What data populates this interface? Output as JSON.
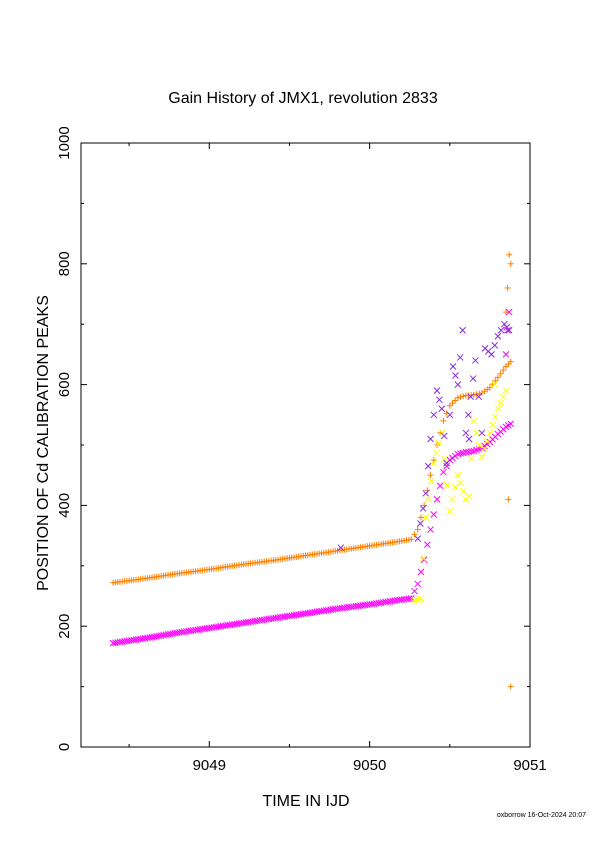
{
  "chart_data": {
    "type": "scatter",
    "title": "Gain History of JMX1, revolution 2833",
    "xlabel": "TIME IN IJD",
    "ylabel": "POSITION OF Cd CALIBRATION PEAKS",
    "xlim": [
      9048.2,
      9051.0
    ],
    "ylim": [
      0,
      1000
    ],
    "xticks": [
      "9049",
      "9050",
      "9051"
    ],
    "yticks": [
      "0",
      "200",
      "400",
      "600",
      "800",
      "1000"
    ],
    "grid": false,
    "legend": "none",
    "series": [
      {
        "color": "#ff7f00",
        "marker": "plus",
        "points": [
          [
            9048.4,
            272
          ],
          [
            9048.6,
            279
          ],
          [
            9048.8,
            287
          ],
          [
            9049.0,
            294
          ],
          [
            9049.2,
            302
          ],
          [
            9049.4,
            309
          ],
          [
            9049.6,
            317
          ],
          [
            9049.8,
            325
          ],
          [
            9050.0,
            333
          ],
          [
            9050.2,
            341
          ],
          [
            9050.26,
            344
          ],
          [
            9050.3,
            360
          ],
          [
            9050.34,
            400
          ],
          [
            9050.38,
            450
          ],
          [
            9050.42,
            500
          ],
          [
            9050.46,
            540
          ],
          [
            9050.5,
            565
          ],
          [
            9050.55,
            578
          ],
          [
            9050.6,
            582
          ],
          [
            9050.65,
            583
          ],
          [
            9050.7,
            586
          ],
          [
            9050.75,
            595
          ],
          [
            9050.8,
            612
          ],
          [
            9050.85,
            630
          ],
          [
            9050.88,
            638
          ],
          [
            9050.87,
            815
          ],
          [
            9050.88,
            800
          ],
          [
            9050.86,
            760
          ],
          [
            9050.85,
            720
          ],
          [
            9050.88,
            100
          ]
        ]
      },
      {
        "color": "#ff00ff",
        "marker": "cross",
        "points": [
          [
            9048.4,
            172
          ],
          [
            9048.6,
            180
          ],
          [
            9048.8,
            189
          ],
          [
            9049.0,
            197
          ],
          [
            9049.2,
            205
          ],
          [
            9049.4,
            213
          ],
          [
            9049.6,
            221
          ],
          [
            9049.8,
            229
          ],
          [
            9050.0,
            236
          ],
          [
            9050.2,
            244
          ],
          [
            9050.26,
            246
          ],
          [
            9050.3,
            270
          ],
          [
            9050.34,
            310
          ],
          [
            9050.38,
            360
          ],
          [
            9050.42,
            410
          ],
          [
            9050.46,
            455
          ],
          [
            9050.5,
            475
          ],
          [
            9050.55,
            485
          ],
          [
            9050.6,
            488
          ],
          [
            9050.65,
            490
          ],
          [
            9050.7,
            495
          ],
          [
            9050.75,
            505
          ],
          [
            9050.8,
            518
          ],
          [
            9050.85,
            530
          ],
          [
            9050.88,
            535
          ],
          [
            9050.86,
            690
          ],
          [
            9050.87,
            720
          ],
          [
            9050.85,
            650
          ]
        ]
      },
      {
        "color": "#ffff00",
        "marker": "cross",
        "points": [
          [
            9050.28,
            243
          ],
          [
            9050.32,
            245
          ],
          [
            9050.35,
            380
          ],
          [
            9050.4,
            470
          ],
          [
            9050.45,
            520
          ],
          [
            9050.5,
            390
          ],
          [
            9050.55,
            450
          ],
          [
            9050.6,
            410
          ],
          [
            9050.62,
            415
          ],
          [
            9050.65,
            540
          ],
          [
            9050.7,
            480
          ],
          [
            9050.75,
            520
          ],
          [
            9050.8,
            560
          ],
          [
            9050.85,
            590
          ],
          [
            9050.78,
            600
          ]
        ]
      },
      {
        "color": "#8a2be2",
        "marker": "cross",
        "points": [
          [
            9049.82,
            330
          ],
          [
            9050.3,
            345
          ],
          [
            9050.35,
            420
          ],
          [
            9050.38,
            510
          ],
          [
            9050.42,
            590
          ],
          [
            9050.45,
            560
          ],
          [
            9050.48,
            470
          ],
          [
            9050.52,
            630
          ],
          [
            9050.55,
            600
          ],
          [
            9050.58,
            690
          ],
          [
            9050.6,
            520
          ],
          [
            9050.63,
            580
          ],
          [
            9050.66,
            640
          ],
          [
            9050.7,
            520
          ],
          [
            9050.72,
            660
          ],
          [
            9050.76,
            650
          ],
          [
            9050.8,
            680
          ],
          [
            9050.84,
            700
          ],
          [
            9050.87,
            690
          ],
          [
            9050.62,
            510
          ]
        ]
      }
    ]
  },
  "footer": {
    "credit": "oxborrow 16-Oct-2024 20:07"
  }
}
